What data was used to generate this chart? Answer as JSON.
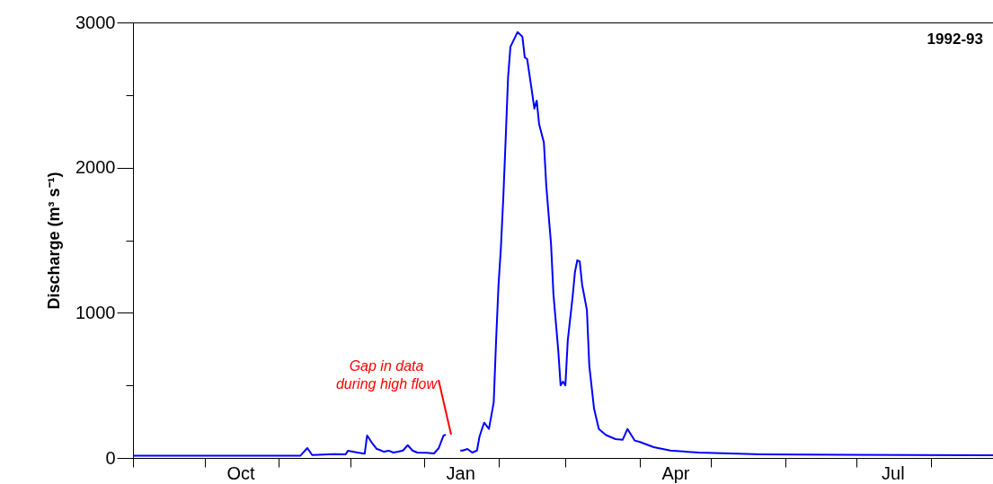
{
  "chart_data": {
    "type": "line",
    "title": "1992-93",
    "ylabel": "Discharge (m³ s⁻¹)",
    "x": [
      "1992-09-01",
      "1992-11-10",
      "1992-11-13",
      "1992-11-15",
      "1992-11-24",
      "1992-11-29",
      "1992-11-30",
      "1992-12-04",
      "1992-12-07",
      "1992-12-08",
      "1992-12-10",
      "1992-12-12",
      "1992-12-13",
      "1992-12-15",
      "1992-12-17",
      "1992-12-19",
      "1992-12-21",
      "1992-12-23",
      "1992-12-25",
      "1992-12-27",
      "1992-12-29",
      "1993-01-02",
      "1993-01-05",
      "1993-01-07",
      "1993-01-09",
      "1993-01-10",
      "1993-01-12",
      "1993-01-16",
      "1993-01-17",
      "1993-01-19",
      "1993-01-21",
      "1993-01-23",
      "1993-01-24",
      "1993-01-25",
      "1993-01-26",
      "1993-01-28",
      "1993-01-30",
      "1993-01-31",
      "1993-02-01",
      "1993-02-02",
      "1993-02-03",
      "1993-02-04",
      "1993-02-05",
      "1993-02-06",
      "1993-02-08",
      "1993-02-09",
      "1993-02-11",
      "1993-02-12",
      "1993-02-13",
      "1993-02-15",
      "1993-02-16",
      "1993-02-17",
      "1993-02-18",
      "1993-02-20",
      "1993-02-21",
      "1993-02-23",
      "1993-02-24",
      "1993-02-26",
      "1993-02-27",
      "1993-02-28",
      "1993-03-01",
      "1993-03-02",
      "1993-03-04",
      "1993-03-05",
      "1993-03-06",
      "1993-03-07",
      "1993-03-08",
      "1993-03-10",
      "1993-03-11",
      "1993-03-13",
      "1993-03-15",
      "1993-03-18",
      "1993-03-22",
      "1993-03-25",
      "1993-03-27",
      "1993-03-30",
      "1993-04-01",
      "1993-04-07",
      "1993-04-14",
      "1993-04-26",
      "1993-05-22",
      "1993-06-28",
      "1993-08-27"
    ],
    "series": [
      {
        "color": "#0000ff",
        "values": [
          15,
          15,
          68,
          20,
          27,
          25,
          50,
          37,
          30,
          155,
          105,
          62,
          57,
          43,
          50,
          37,
          43,
          51,
          88,
          51,
          37,
          35,
          31,
          68,
          155,
          160,
          null,
          51,
          51,
          62,
          37,
          51,
          144,
          196,
          243,
          200,
          383,
          810,
          1190,
          1447,
          1790,
          2195,
          2620,
          2832,
          2900,
          2934,
          2902,
          2759,
          2748,
          2525,
          2407,
          2461,
          2300,
          2173,
          1874,
          1472,
          1128,
          744,
          500,
          526,
          500,
          810,
          1107,
          1280,
          1362,
          1354,
          1194,
          1020,
          637,
          340,
          200,
          158,
          130,
          126,
          200,
          120,
          111,
          74,
          51,
          37,
          25,
          21,
          19
        ]
      }
    ],
    "xlim": [
      "1992-09-01",
      "1993-08-27"
    ],
    "xticks": [
      {
        "value": "1992-09-01",
        "label": null
      },
      {
        "value": "1992-10-01",
        "label": null
      },
      {
        "value": "1992-10-16",
        "label": "Oct"
      },
      {
        "value": "1992-11-01",
        "label": null
      },
      {
        "value": "1992-12-01",
        "label": null
      },
      {
        "value": "1993-01-01",
        "label": null
      },
      {
        "value": "1993-01-16",
        "label": "Jan"
      },
      {
        "value": "1993-02-01",
        "label": null
      },
      {
        "value": "1993-03-01",
        "label": null
      },
      {
        "value": "1993-04-01",
        "label": null
      },
      {
        "value": "1993-04-16",
        "label": "Apr"
      },
      {
        "value": "1993-05-01",
        "label": null
      },
      {
        "value": "1993-06-01",
        "label": null
      },
      {
        "value": "1993-07-01",
        "label": null
      },
      {
        "value": "1993-07-16",
        "label": "Jul"
      },
      {
        "value": "1993-08-01",
        "label": null
      }
    ],
    "ylim": [
      0,
      3000
    ],
    "yticks": [
      {
        "value": 0,
        "label": "0"
      },
      {
        "value": 500,
        "label": null
      },
      {
        "value": 1000,
        "label": "1000"
      },
      {
        "value": 1500,
        "label": null
      },
      {
        "value": 2000,
        "label": "2000"
      },
      {
        "value": 2500,
        "label": null
      },
      {
        "value": 3000,
        "label": "3000"
      }
    ],
    "annotations": [
      "Gap in data during high flow"
    ],
    "grid": false,
    "marker": "none",
    "line_style": "solid"
  }
}
